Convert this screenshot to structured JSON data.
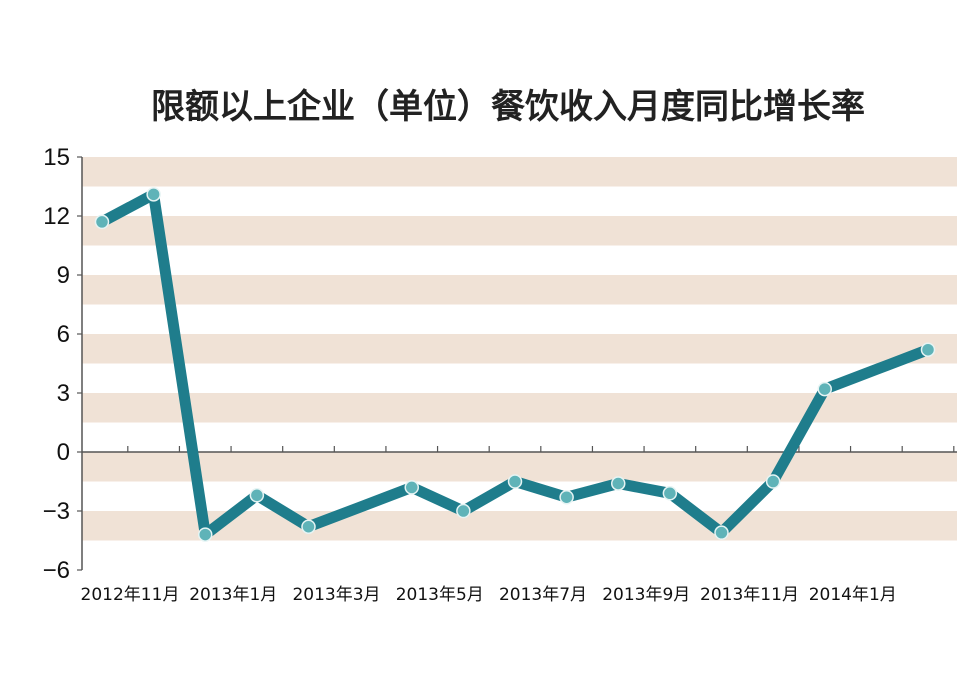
{
  "chart_data": {
    "type": "line",
    "title": "限额以上企业（单位）餐饮收入月度同比增长率",
    "xlabel": "",
    "ylabel": "",
    "ylim": [
      -6,
      15
    ],
    "yticks": [
      15,
      12,
      9,
      6,
      3,
      0,
      -3,
      -6
    ],
    "ytick_labels": [
      "15",
      "12",
      "9",
      "6",
      "3",
      "0",
      "−3",
      "−6"
    ],
    "x": [
      "2012年11月",
      "2012年12月",
      "2013年1月",
      "2013年2月",
      "2013年3月",
      "2013年4月",
      "2013年5月",
      "2013年6月",
      "2013年7月",
      "2013年8月",
      "2013年9月",
      "2013年10月",
      "2013年11月",
      "2013年12月",
      "2014年1月",
      "2014年2月",
      "2014年3月"
    ],
    "xtick_labels": [
      "2012年11月",
      "2013年1月",
      "2013年3月",
      "2013年5月",
      "2013年7月",
      "2013年9月",
      "2013年11月",
      "2014年1月"
    ],
    "series": [
      {
        "values": [
          11.7,
          13.1,
          -4.2,
          -2.2,
          -3.8,
          null,
          -1.8,
          -3.0,
          -1.5,
          -2.3,
          -1.6,
          -2.1,
          -4.1,
          -1.5,
          3.2,
          null,
          5.2
        ]
      }
    ],
    "grid": true,
    "colors": {
      "band": "#f0e2d6",
      "line": "#1f7d8c",
      "marker": "#5fb3b8",
      "axis": "#555555"
    }
  }
}
